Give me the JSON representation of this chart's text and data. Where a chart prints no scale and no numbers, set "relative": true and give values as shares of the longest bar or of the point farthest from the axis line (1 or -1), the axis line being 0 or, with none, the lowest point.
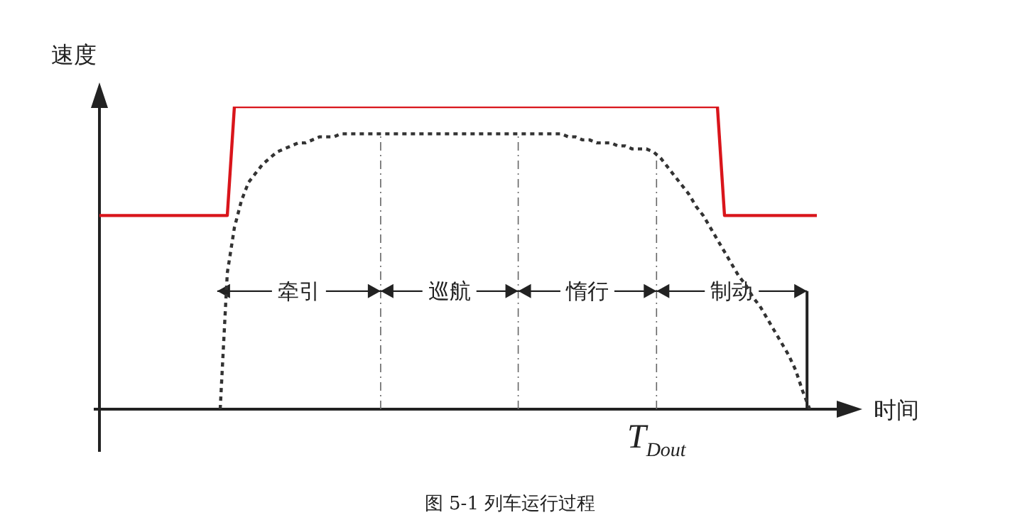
{
  "chart_data": {
    "type": "line",
    "relative": true,
    "grid": false,
    "legend": false,
    "marker": "none",
    "xlabel": "时间",
    "ylabel": "速度",
    "categories": [
      null,
      null,
      null,
      null,
      null,
      null,
      null,
      null,
      null,
      null,
      null,
      null,
      null,
      null,
      null,
      null,
      null,
      null,
      null,
      null,
      null,
      null,
      null,
      null,
      null,
      null,
      null,
      null,
      null,
      null,
      null,
      null,
      null,
      null,
      null,
      null,
      null,
      null,
      null,
      null,
      null,
      null,
      null,
      null,
      null,
      null,
      null,
      null,
      null,
      null,
      null,
      null,
      null,
      null,
      null,
      null,
      null,
      null,
      null,
      null,
      null,
      null,
      null,
      null,
      null,
      null,
      null,
      null,
      null,
      null,
      null,
      null,
      null,
      null,
      null,
      null,
      null,
      null,
      null,
      null,
      null,
      null,
      null,
      null,
      null,
      null,
      null,
      null,
      null,
      null,
      null,
      null,
      null,
      null,
      null,
      null,
      null,
      null,
      null,
      null,
      null,
      null,
      null,
      null,
      null,
      null,
      null,
      null
    ],
    "series": [
      {
        "color": "#d9151b",
        "line_style": "solid",
        "values": [
          0.64,
          0.64,
          0.64,
          0.64,
          0.64,
          0.64,
          0.64,
          0.64,
          0.64,
          0.64,
          0.64,
          0.64,
          0.64,
          0.64,
          0.64,
          0.64,
          0.64,
          0.64,
          0.64,
          1,
          1,
          1,
          1,
          1,
          1,
          1,
          1,
          1,
          1,
          1,
          1,
          1,
          1,
          1,
          1,
          1,
          1,
          1,
          1,
          1,
          1,
          1,
          1,
          1,
          1,
          1,
          1,
          1,
          1,
          1,
          1,
          1,
          1,
          1,
          1,
          1,
          1,
          1,
          1,
          1,
          1,
          1,
          1,
          1,
          1,
          1,
          1,
          1,
          1,
          1,
          1,
          1,
          1,
          1,
          1,
          1,
          1,
          1,
          1,
          1,
          1,
          1,
          1,
          1,
          1,
          1,
          1,
          1,
          0.64,
          0.64,
          0.64,
          0.64,
          0.64,
          0.64,
          0.64,
          0.64,
          0.64,
          0.64,
          0.64,
          0.64,
          0.64,
          0.64,
          null,
          null,
          null,
          null,
          null,
          null
        ]
      },
      {
        "color": "#333333",
        "line_style": "dotted",
        "values": [
          null,
          null,
          null,
          null,
          null,
          null,
          null,
          null,
          null,
          null,
          null,
          null,
          null,
          null,
          null,
          null,
          null,
          0,
          0.45,
          0.6,
          0.69,
          0.75,
          0.78,
          0.81,
          0.83,
          0.85,
          0.86,
          0.87,
          0.88,
          0.88,
          0.89,
          0.9,
          0.9,
          0.9,
          0.91,
          0.91,
          0.91,
          0.91,
          0.91,
          0.91,
          0.91,
          0.91,
          0.91,
          0.91,
          0.91,
          0.91,
          0.91,
          0.91,
          0.91,
          0.91,
          0.91,
          0.91,
          0.91,
          0.91,
          0.91,
          0.91,
          0.91,
          0.91,
          0.91,
          0.91,
          0.91,
          0.91,
          0.91,
          0.91,
          0.91,
          0.91,
          0.9,
          0.9,
          0.89,
          0.89,
          0.88,
          0.88,
          0.88,
          0.87,
          0.87,
          0.86,
          0.86,
          0.86,
          0.85,
          0.83,
          0.8,
          0.77,
          0.74,
          0.71,
          0.67,
          0.64,
          0.6,
          0.56,
          0.52,
          0.48,
          0.44,
          0.41,
          0.37,
          0.34,
          0.3,
          0.26,
          0.22,
          0.18,
          0.13,
          0.06,
          0,
          null,
          null,
          null,
          null,
          null,
          null,
          null
        ]
      }
    ],
    "annotations": [
      "牵引",
      "巡航",
      "惰行",
      "制动",
      "T$_{Dout}$",
      "图 5-1 列车运行过程"
    ]
  }
}
